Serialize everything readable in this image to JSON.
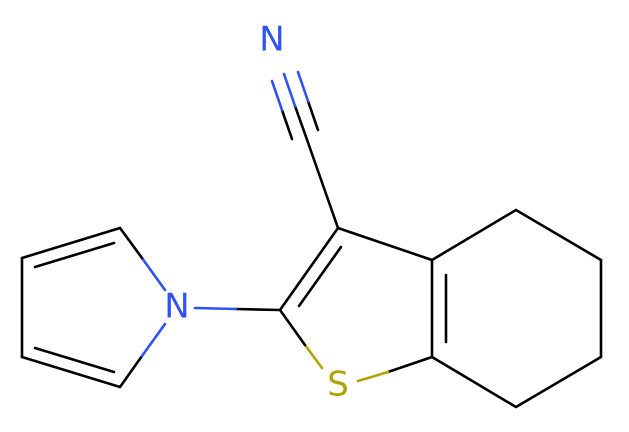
{
  "atoms": [
    {
      "label": "N"
    },
    {
      "label": "N"
    },
    {
      "label": "S"
    }
  ]
}
